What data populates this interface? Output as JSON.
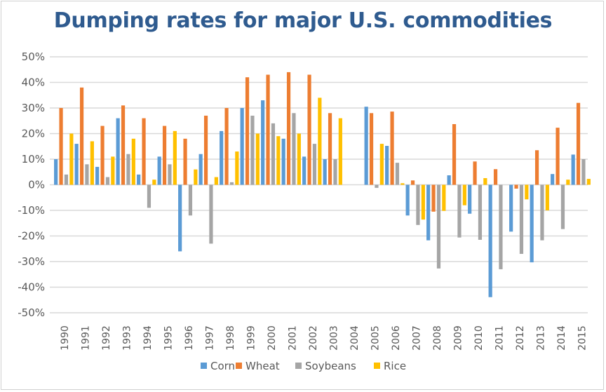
{
  "chart_data": {
    "type": "bar",
    "title": "Dumping rates for major U.S. commodities",
    "xlabel": "",
    "ylabel": "",
    "ylim": [
      -50,
      50
    ],
    "y_ticks": [
      50,
      40,
      30,
      20,
      10,
      0,
      -10,
      -20,
      -30,
      -40,
      -50
    ],
    "y_tick_labels": [
      "50%",
      "40%",
      "30%",
      "20%",
      "10%",
      "0%",
      "-10%",
      "-20%",
      "-30%",
      "-40%",
      "-50%"
    ],
    "grid": true,
    "legend_position": "bottom",
    "categories": [
      "1990",
      "1991",
      "1992",
      "1993",
      "1994",
      "1995",
      "1996",
      "1997",
      "1998",
      "1999",
      "2000",
      "2001",
      "2002",
      "2003",
      "2004",
      "2005",
      "2006",
      "2007",
      "2008",
      "2009",
      "2010",
      "2011",
      "2012",
      "2013",
      "2014",
      "2015"
    ],
    "series": [
      {
        "name": "Corn",
        "color": "#5b9bd5",
        "values": [
          10,
          16,
          7,
          26,
          4,
          11,
          -26,
          12,
          21,
          30,
          33,
          18,
          11,
          10,
          0,
          30.5,
          15.2,
          -12,
          -21.7,
          3.7,
          -11.3,
          -43.9,
          -18.3,
          -30.3,
          4.2,
          11.8
        ]
      },
      {
        "name": "Wheat",
        "color": "#ed7d31",
        "values": [
          30,
          38,
          23,
          31,
          26,
          23,
          18,
          27,
          30,
          42,
          43,
          44,
          43,
          28,
          0,
          28,
          28.6,
          1.7,
          -10.5,
          23.7,
          9.1,
          6.1,
          -1.5,
          13.5,
          22.3,
          32
        ]
      },
      {
        "name": "Soybeans",
        "color": "#a5a5a5",
        "values": [
          4,
          8,
          3,
          12,
          -9,
          8,
          -12,
          -23,
          1,
          27,
          24,
          28,
          16,
          10,
          0,
          -1.2,
          8.6,
          -15.7,
          -32.7,
          -20.6,
          -21.5,
          -33,
          -27,
          -21.7,
          -17.3,
          10
        ]
      },
      {
        "name": "Rice",
        "color": "#ffc000",
        "values": [
          20,
          17,
          11,
          18,
          2,
          21,
          6,
          3,
          13,
          20,
          19,
          20,
          34,
          26,
          0,
          16,
          0.6,
          -13.6,
          -10.2,
          -8,
          2.6,
          0,
          -5.7,
          -10,
          2,
          2.3
        ]
      }
    ]
  }
}
